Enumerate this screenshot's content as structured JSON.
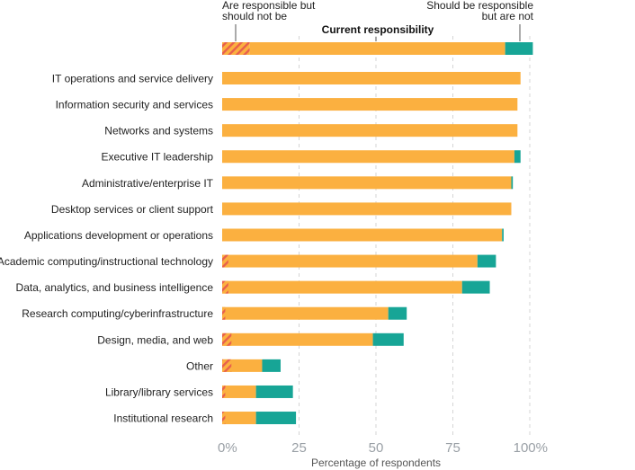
{
  "chart_data": {
    "type": "bar",
    "orientation": "horizontal",
    "stacked": true,
    "xlabel": "Percentage of respondents",
    "xlim": [
      0,
      100
    ],
    "xticks": [
      {
        "value": 0,
        "label": "0%"
      },
      {
        "value": 25,
        "label": "25"
      },
      {
        "value": 50,
        "label": "50"
      },
      {
        "value": 75,
        "label": "75"
      },
      {
        "value": 100,
        "label": "100%"
      }
    ],
    "grid": true,
    "legend": {
      "title": "Current responsibility",
      "left_note": [
        "Are responsible but",
        "should not be"
      ],
      "right_note": [
        "Should be responsible",
        "but are not"
      ],
      "example": {
        "hatched": 9,
        "current": 92,
        "gap": 9
      }
    },
    "colors": {
      "current": "#fbb040",
      "gap": "#17a596",
      "hatch_stripe": "#e8604c",
      "grid": "#d5d5d5",
      "tick": "#9aa0a6"
    },
    "series": [
      {
        "key": "hatched",
        "values": [
          0,
          0,
          0,
          0,
          0,
          0,
          0,
          2,
          2,
          1,
          3,
          3,
          1,
          1
        ]
      },
      {
        "key": "current",
        "values": [
          97,
          96,
          96,
          95,
          94,
          94,
          91,
          83,
          78,
          54,
          49,
          13,
          11,
          11
        ]
      },
      {
        "key": "gap",
        "values": [
          0,
          0,
          0,
          2,
          0.5,
          0,
          0.5,
          6,
          9,
          6,
          10,
          6,
          12,
          13
        ]
      }
    ],
    "categories": [
      "IT operations and service delivery",
      "Information security and services",
      "Networks and systems",
      "Executive IT leadership",
      "Administrative/enterprise IT",
      "Desktop services or client support",
      "Applications development or operations",
      "Academic computing/instructional technology",
      "Data, analytics, and business intelligence",
      "Research computing/cyberinfrastructure",
      "Design, media, and web",
      "Other",
      "Library/library services",
      "Institutional research"
    ]
  }
}
